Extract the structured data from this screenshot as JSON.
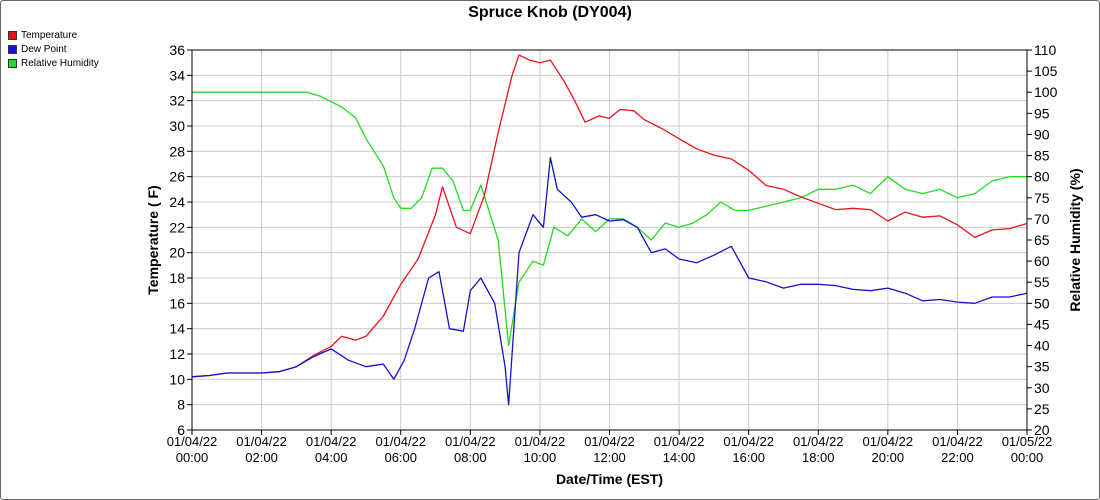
{
  "chart_data": {
    "type": "line",
    "title": "Spruce Knob (DY004)",
    "xlabel": "Date/Time (EST)",
    "ylabel_left": "Temperature ( F)",
    "ylabel_right": "Relative Humidity (%)",
    "ylim_left": [
      6,
      36
    ],
    "ylim_right": [
      20,
      110
    ],
    "yticks_left": [
      "6",
      "8",
      "10",
      "12",
      "14",
      "16",
      "18",
      "20",
      "22",
      "24",
      "26",
      "28",
      "30",
      "32",
      "34",
      "36"
    ],
    "yticks_right": [
      "20",
      "25",
      "30",
      "35",
      "40",
      "45",
      "50",
      "55",
      "60",
      "65",
      "70",
      "75",
      "80",
      "85",
      "90",
      "95",
      "100",
      "105",
      "110"
    ],
    "xlim_hours": [
      0,
      24
    ],
    "xticks": [
      {
        "date": "01/04/22",
        "time": "00:00"
      },
      {
        "date": "01/04/22",
        "time": "02:00"
      },
      {
        "date": "01/04/22",
        "time": "04:00"
      },
      {
        "date": "01/04/22",
        "time": "06:00"
      },
      {
        "date": "01/04/22",
        "time": "08:00"
      },
      {
        "date": "01/04/22",
        "time": "10:00"
      },
      {
        "date": "01/04/22",
        "time": "12:00"
      },
      {
        "date": "01/04/22",
        "time": "14:00"
      },
      {
        "date": "01/04/22",
        "time": "16:00"
      },
      {
        "date": "01/04/22",
        "time": "18:00"
      },
      {
        "date": "01/04/22",
        "time": "20:00"
      },
      {
        "date": "01/04/22",
        "time": "22:00"
      },
      {
        "date": "01/05/22",
        "time": "00:00"
      }
    ],
    "grid": true,
    "legend_placement": "top-left",
    "series": [
      {
        "name": "Temperature",
        "color": "#e8141c",
        "axis": "left",
        "points": [
          [
            0,
            10.2
          ],
          [
            0.5,
            10.3
          ],
          [
            1,
            10.5
          ],
          [
            1.5,
            10.5
          ],
          [
            2,
            10.5
          ],
          [
            2.5,
            10.6
          ],
          [
            3,
            11
          ],
          [
            3.5,
            11.9
          ],
          [
            4,
            12.6
          ],
          [
            4.3,
            13.4
          ],
          [
            4.7,
            13.1
          ],
          [
            5,
            13.4
          ],
          [
            5.5,
            15
          ],
          [
            6,
            17.5
          ],
          [
            6.5,
            19.5
          ],
          [
            7,
            23
          ],
          [
            7.2,
            25.2
          ],
          [
            7.6,
            22
          ],
          [
            8,
            21.5
          ],
          [
            8.4,
            24.5
          ],
          [
            8.8,
            29.5
          ],
          [
            9.2,
            34
          ],
          [
            9.4,
            35.6
          ],
          [
            9.7,
            35.2
          ],
          [
            10,
            35
          ],
          [
            10.3,
            35.2
          ],
          [
            10.7,
            33.5
          ],
          [
            11,
            32
          ],
          [
            11.3,
            30.3
          ],
          [
            11.7,
            30.8
          ],
          [
            12,
            30.6
          ],
          [
            12.3,
            31.3
          ],
          [
            12.7,
            31.2
          ],
          [
            13,
            30.5
          ],
          [
            13.5,
            29.8
          ],
          [
            14,
            29
          ],
          [
            14.5,
            28.2
          ],
          [
            15,
            27.7
          ],
          [
            15.5,
            27.4
          ],
          [
            16,
            26.5
          ],
          [
            16.5,
            25.3
          ],
          [
            17,
            25
          ],
          [
            17.5,
            24.4
          ],
          [
            18,
            23.9
          ],
          [
            18.5,
            23.4
          ],
          [
            19,
            23.5
          ],
          [
            19.5,
            23.4
          ],
          [
            20,
            22.5
          ],
          [
            20.5,
            23.2
          ],
          [
            21,
            22.8
          ],
          [
            21.5,
            22.9
          ],
          [
            22,
            22.2
          ],
          [
            22.5,
            21.2
          ],
          [
            23,
            21.8
          ],
          [
            23.5,
            21.9
          ],
          [
            24,
            22.3
          ]
        ]
      },
      {
        "name": "Dew Point",
        "color": "#1414c8",
        "axis": "left",
        "points": [
          [
            0,
            10.2
          ],
          [
            0.5,
            10.3
          ],
          [
            1,
            10.5
          ],
          [
            1.5,
            10.5
          ],
          [
            2,
            10.5
          ],
          [
            2.5,
            10.6
          ],
          [
            3,
            11
          ],
          [
            3.5,
            11.8
          ],
          [
            4,
            12.4
          ],
          [
            4.5,
            11.5
          ],
          [
            5,
            11
          ],
          [
            5.5,
            11.2
          ],
          [
            5.8,
            10
          ],
          [
            6.1,
            11.5
          ],
          [
            6.4,
            14
          ],
          [
            6.8,
            18
          ],
          [
            7.1,
            18.5
          ],
          [
            7.4,
            14
          ],
          [
            7.8,
            13.8
          ],
          [
            8,
            17
          ],
          [
            8.3,
            18
          ],
          [
            8.7,
            16
          ],
          [
            9,
            11
          ],
          [
            9.1,
            8
          ],
          [
            9.4,
            20
          ],
          [
            9.8,
            23
          ],
          [
            10.1,
            22
          ],
          [
            10.3,
            27.5
          ],
          [
            10.5,
            25
          ],
          [
            10.9,
            24
          ],
          [
            11.2,
            22.8
          ],
          [
            11.6,
            23
          ],
          [
            12,
            22.5
          ],
          [
            12.4,
            22.6
          ],
          [
            12.8,
            22
          ],
          [
            13.2,
            20
          ],
          [
            13.6,
            20.3
          ],
          [
            14,
            19.5
          ],
          [
            14.5,
            19.2
          ],
          [
            15,
            19.8
          ],
          [
            15.5,
            20.5
          ],
          [
            16,
            18
          ],
          [
            16.5,
            17.7
          ],
          [
            17,
            17.2
          ],
          [
            17.5,
            17.5
          ],
          [
            18,
            17.5
          ],
          [
            18.5,
            17.4
          ],
          [
            19,
            17.1
          ],
          [
            19.5,
            17
          ],
          [
            20,
            17.2
          ],
          [
            20.5,
            16.8
          ],
          [
            21,
            16.2
          ],
          [
            21.5,
            16.3
          ],
          [
            22,
            16.1
          ],
          [
            22.5,
            16
          ],
          [
            23,
            16.5
          ],
          [
            23.5,
            16.5
          ],
          [
            24,
            16.8
          ]
        ]
      },
      {
        "name": "Relative Humidity",
        "color": "#22dc22",
        "axis": "right",
        "points": [
          [
            0,
            100
          ],
          [
            3.3,
            100
          ],
          [
            3.7,
            99
          ],
          [
            4.3,
            96.5
          ],
          [
            4.7,
            94
          ],
          [
            5,
            89
          ],
          [
            5.5,
            82.5
          ],
          [
            5.8,
            75
          ],
          [
            6,
            72.5
          ],
          [
            6.3,
            72.5
          ],
          [
            6.6,
            75
          ],
          [
            6.9,
            82
          ],
          [
            7.2,
            82
          ],
          [
            7.5,
            79
          ],
          [
            7.8,
            72
          ],
          [
            8,
            72
          ],
          [
            8.3,
            78
          ],
          [
            8.8,
            65
          ],
          [
            9.1,
            40
          ],
          [
            9.4,
            55
          ],
          [
            9.8,
            60
          ],
          [
            10.1,
            59
          ],
          [
            10.4,
            68
          ],
          [
            10.8,
            66
          ],
          [
            11.2,
            70
          ],
          [
            11.6,
            67
          ],
          [
            12,
            70
          ],
          [
            12.4,
            70
          ],
          [
            12.8,
            68
          ],
          [
            13.2,
            65
          ],
          [
            13.6,
            69
          ],
          [
            14,
            68
          ],
          [
            14.4,
            69
          ],
          [
            14.8,
            71
          ],
          [
            15.2,
            74
          ],
          [
            15.6,
            72
          ],
          [
            16,
            72
          ],
          [
            16.5,
            73
          ],
          [
            17,
            74
          ],
          [
            17.5,
            75
          ],
          [
            18,
            77
          ],
          [
            18.5,
            77
          ],
          [
            19,
            78
          ],
          [
            19.5,
            76
          ],
          [
            20,
            80
          ],
          [
            20.5,
            77
          ],
          [
            21,
            76
          ],
          [
            21.5,
            77
          ],
          [
            22,
            75
          ],
          [
            22.5,
            76
          ],
          [
            23,
            79
          ],
          [
            23.5,
            80
          ],
          [
            24,
            80
          ]
        ]
      }
    ]
  }
}
